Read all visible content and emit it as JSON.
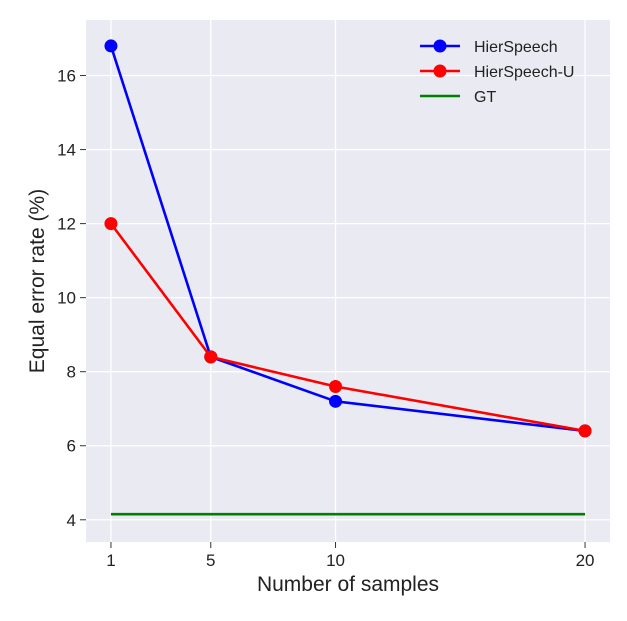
{
  "chart_data": {
    "type": "line",
    "title": "",
    "xlabel": "Number of samples",
    "ylabel": "Equal error rate (%)",
    "x": [
      1,
      5,
      10,
      20
    ],
    "xticks": [
      1,
      5,
      10,
      20
    ],
    "xlim": [
      0,
      21
    ],
    "yticks": [
      4,
      6,
      8,
      10,
      12,
      14,
      16
    ],
    "ylim": [
      3.4,
      17.5
    ],
    "grid": true,
    "legend_position": "top-right",
    "series": [
      {
        "name": "HierSpeech",
        "values": [
          16.8,
          8.4,
          7.2,
          6.4
        ],
        "color": "#0000ff",
        "marker": "circle"
      },
      {
        "name": "HierSpeech-U",
        "values": [
          12.0,
          8.4,
          7.6,
          6.4
        ],
        "color": "#ff0000",
        "marker": "circle"
      },
      {
        "name": "GT",
        "values": [
          4.15,
          4.15,
          4.15,
          4.15
        ],
        "color": "#008000",
        "marker": "none"
      }
    ],
    "background_color": "#eaeaf2"
  }
}
